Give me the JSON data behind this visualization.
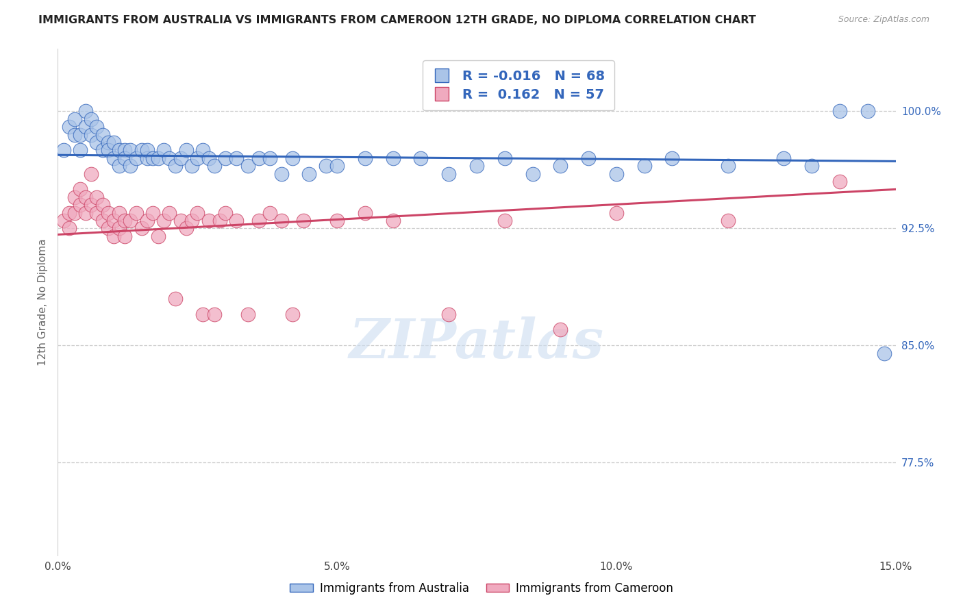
{
  "title": "IMMIGRANTS FROM AUSTRALIA VS IMMIGRANTS FROM CAMEROON 12TH GRADE, NO DIPLOMA CORRELATION CHART",
  "source": "Source: ZipAtlas.com",
  "ylabel": "12th Grade, No Diploma",
  "ylabel_ticks": [
    "100.0%",
    "92.5%",
    "85.0%",
    "77.5%"
  ],
  "ylabel_tick_values": [
    1.0,
    0.925,
    0.85,
    0.775
  ],
  "xmin": 0.0,
  "xmax": 0.15,
  "ymin": 0.715,
  "ymax": 1.04,
  "R_australia": -0.016,
  "N_australia": 68,
  "R_cameroon": 0.162,
  "N_cameroon": 57,
  "color_australia": "#aac4e8",
  "color_cameroon": "#f0aabf",
  "line_color_australia": "#3366bb",
  "line_color_cameroon": "#cc4466",
  "legend_label_australia": "Immigrants from Australia",
  "legend_label_cameroon": "Immigrants from Cameroon",
  "watermark": "ZIPatlas",
  "background_color": "#ffffff",
  "grid_color": "#cccccc",
  "aus_x": [
    0.001,
    0.002,
    0.003,
    0.003,
    0.004,
    0.004,
    0.005,
    0.005,
    0.006,
    0.006,
    0.007,
    0.007,
    0.008,
    0.008,
    0.009,
    0.009,
    0.01,
    0.01,
    0.011,
    0.011,
    0.012,
    0.012,
    0.013,
    0.013,
    0.014,
    0.015,
    0.016,
    0.016,
    0.017,
    0.018,
    0.019,
    0.02,
    0.021,
    0.022,
    0.023,
    0.024,
    0.025,
    0.026,
    0.027,
    0.028,
    0.03,
    0.032,
    0.034,
    0.036,
    0.038,
    0.04,
    0.042,
    0.045,
    0.048,
    0.05,
    0.055,
    0.06,
    0.065,
    0.07,
    0.075,
    0.08,
    0.085,
    0.09,
    0.095,
    0.1,
    0.105,
    0.11,
    0.12,
    0.13,
    0.135,
    0.14,
    0.145,
    0.148
  ],
  "aus_y": [
    0.975,
    0.99,
    0.995,
    0.985,
    0.985,
    0.975,
    1.0,
    0.99,
    0.995,
    0.985,
    0.99,
    0.98,
    0.985,
    0.975,
    0.98,
    0.975,
    0.97,
    0.98,
    0.975,
    0.965,
    0.975,
    0.97,
    0.975,
    0.965,
    0.97,
    0.975,
    0.97,
    0.975,
    0.97,
    0.97,
    0.975,
    0.97,
    0.965,
    0.97,
    0.975,
    0.965,
    0.97,
    0.975,
    0.97,
    0.965,
    0.97,
    0.97,
    0.965,
    0.97,
    0.97,
    0.96,
    0.97,
    0.96,
    0.965,
    0.965,
    0.97,
    0.97,
    0.97,
    0.96,
    0.965,
    0.97,
    0.96,
    0.965,
    0.97,
    0.96,
    0.965,
    0.97,
    0.965,
    0.97,
    0.965,
    1.0,
    1.0,
    0.845
  ],
  "cam_x": [
    0.001,
    0.002,
    0.002,
    0.003,
    0.003,
    0.004,
    0.004,
    0.005,
    0.005,
    0.006,
    0.006,
    0.007,
    0.007,
    0.008,
    0.008,
    0.009,
    0.009,
    0.01,
    0.01,
    0.011,
    0.011,
    0.012,
    0.012,
    0.013,
    0.014,
    0.015,
    0.016,
    0.017,
    0.018,
    0.019,
    0.02,
    0.021,
    0.022,
    0.023,
    0.024,
    0.025,
    0.026,
    0.027,
    0.028,
    0.029,
    0.03,
    0.032,
    0.034,
    0.036,
    0.038,
    0.04,
    0.042,
    0.044,
    0.05,
    0.055,
    0.06,
    0.07,
    0.08,
    0.09,
    0.1,
    0.12,
    0.14
  ],
  "cam_y": [
    0.93,
    0.935,
    0.925,
    0.945,
    0.935,
    0.95,
    0.94,
    0.945,
    0.935,
    0.96,
    0.94,
    0.945,
    0.935,
    0.94,
    0.93,
    0.935,
    0.925,
    0.93,
    0.92,
    0.935,
    0.925,
    0.93,
    0.92,
    0.93,
    0.935,
    0.925,
    0.93,
    0.935,
    0.92,
    0.93,
    0.935,
    0.88,
    0.93,
    0.925,
    0.93,
    0.935,
    0.87,
    0.93,
    0.87,
    0.93,
    0.935,
    0.93,
    0.87,
    0.93,
    0.935,
    0.93,
    0.87,
    0.93,
    0.93,
    0.935,
    0.93,
    0.87,
    0.93,
    0.86,
    0.935,
    0.93,
    0.955
  ]
}
